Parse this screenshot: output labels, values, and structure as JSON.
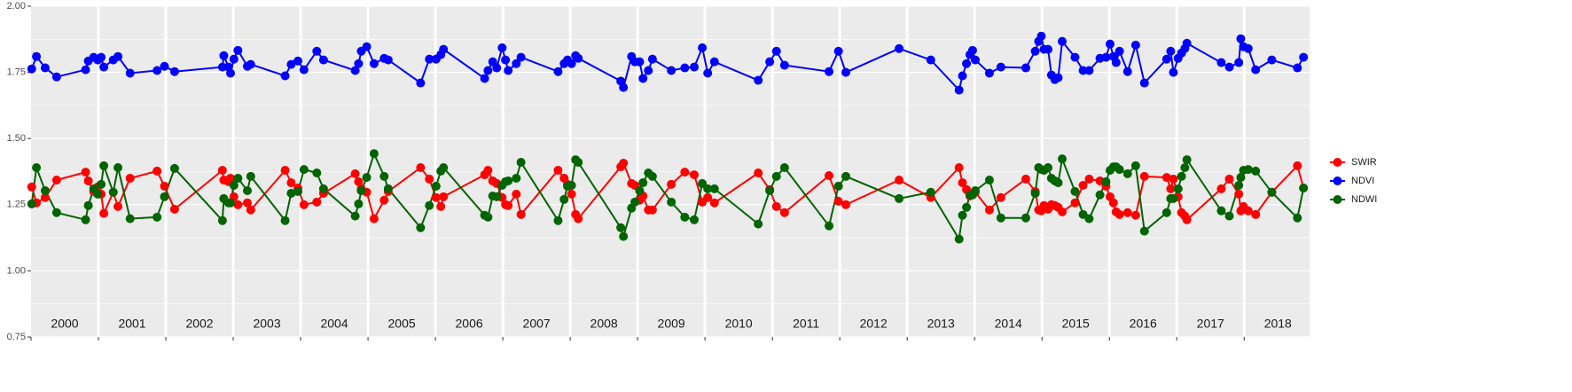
{
  "chart_data": {
    "type": "line",
    "x": [
      2000.01,
      2000.08,
      2000.21,
      2000.38,
      2000.81,
      2000.85,
      2000.93,
      2000.99,
      2001.04,
      2001.08,
      2001.22,
      2001.29,
      2001.47,
      2001.87,
      2001.98,
      2002.13,
      2002.84,
      2002.86,
      2002.93,
      2002.96,
      2003.01,
      2003.07,
      2003.21,
      2003.26,
      2003.77,
      2003.86,
      2003.96,
      2004.05,
      2004.24,
      2004.34,
      2004.81,
      2004.86,
      2004.9,
      2004.98,
      2005.09,
      2005.24,
      2005.3,
      2005.78,
      2005.91,
      2006.01,
      2006.08,
      2006.12,
      2006.73,
      2006.78,
      2006.85,
      2006.91,
      2006.99,
      2007.04,
      2007.08,
      2007.2,
      2007.27,
      2007.82,
      2007.91,
      2007.96,
      2008.02,
      2008.08,
      2008.12,
      2008.75,
      2008.79,
      2008.91,
      2008.96,
      2009.03,
      2009.08,
      2009.16,
      2009.22,
      2009.5,
      2009.7,
      2009.84,
      2009.96,
      2010.04,
      2010.14,
      2010.79,
      2010.96,
      2011.06,
      2011.18,
      2011.84,
      2011.98,
      2012.09,
      2012.88,
      2013.35,
      2013.77,
      2013.82,
      2013.88,
      2013.93,
      2013.97,
      2014.01,
      2014.22,
      2014.39,
      2014.76,
      2014.9,
      2014.95,
      2014.99,
      2015.03,
      2015.09,
      2015.14,
      2015.19,
      2015.24,
      2015.3,
      2015.49,
      2015.61,
      2015.7,
      2015.86,
      2015.95,
      2016.01,
      2016.06,
      2016.1,
      2016.15,
      2016.27,
      2016.39,
      2016.52,
      2016.85,
      2016.91,
      2016.95,
      2017.02,
      2017.07,
      2017.12,
      2017.15,
      2017.66,
      2017.78,
      2017.92,
      2017.95,
      2017.99,
      2018.06,
      2018.17,
      2018.41,
      2018.79,
      2018.88
    ],
    "series": [
      {
        "name": "SWIR",
        "color": "#ff0000",
        "values": [
          1.317,
          1.257,
          1.277,
          1.343,
          1.373,
          1.34,
          1.3,
          1.317,
          1.29,
          1.217,
          1.297,
          1.243,
          1.35,
          1.377,
          1.32,
          1.233,
          1.38,
          1.343,
          1.337,
          1.35,
          1.28,
          1.25,
          1.257,
          1.23,
          1.38,
          1.333,
          1.313,
          1.25,
          1.26,
          1.293,
          1.367,
          1.337,
          1.31,
          1.297,
          1.197,
          1.267,
          1.3,
          1.39,
          1.347,
          1.277,
          1.243,
          1.28,
          1.363,
          1.38,
          1.34,
          1.33,
          1.277,
          1.25,
          1.247,
          1.29,
          1.213,
          1.38,
          1.35,
          1.327,
          1.29,
          1.213,
          1.197,
          1.393,
          1.407,
          1.33,
          1.323,
          1.267,
          1.283,
          1.23,
          1.23,
          1.327,
          1.373,
          1.363,
          1.26,
          1.277,
          1.257,
          1.37,
          1.307,
          1.243,
          1.22,
          1.36,
          1.263,
          1.25,
          1.343,
          1.277,
          1.39,
          1.333,
          1.307,
          1.283,
          1.293,
          1.297,
          1.23,
          1.277,
          1.347,
          1.3,
          1.23,
          1.227,
          1.247,
          1.233,
          1.25,
          1.247,
          1.24,
          1.223,
          1.257,
          1.323,
          1.347,
          1.34,
          1.32,
          1.28,
          1.257,
          1.223,
          1.213,
          1.22,
          1.21,
          1.357,
          1.353,
          1.31,
          1.347,
          1.28,
          1.22,
          1.207,
          1.193,
          1.31,
          1.347,
          1.29,
          1.227,
          1.243,
          1.227,
          1.213,
          1.297,
          1.397,
          1.313
        ]
      },
      {
        "name": "NDVI",
        "color": "#0000ff",
        "values": [
          1.763,
          1.81,
          1.767,
          1.733,
          1.76,
          1.793,
          1.807,
          1.797,
          1.807,
          1.77,
          1.797,
          1.81,
          1.747,
          1.757,
          1.773,
          1.753,
          1.77,
          1.813,
          1.77,
          1.747,
          1.8,
          1.833,
          1.773,
          1.78,
          1.737,
          1.78,
          1.793,
          1.76,
          1.83,
          1.797,
          1.757,
          1.783,
          1.83,
          1.847,
          1.783,
          1.803,
          1.797,
          1.71,
          1.8,
          1.8,
          1.817,
          1.837,
          1.727,
          1.757,
          1.79,
          1.767,
          1.843,
          1.797,
          1.757,
          1.783,
          1.807,
          1.753,
          1.783,
          1.797,
          1.783,
          1.813,
          1.803,
          1.717,
          1.693,
          1.81,
          1.79,
          1.79,
          1.727,
          1.757,
          1.8,
          1.757,
          1.767,
          1.77,
          1.843,
          1.747,
          1.79,
          1.72,
          1.79,
          1.83,
          1.777,
          1.753,
          1.83,
          1.75,
          1.84,
          1.797,
          1.683,
          1.737,
          1.783,
          1.817,
          1.833,
          1.797,
          1.747,
          1.77,
          1.767,
          1.83,
          1.867,
          1.887,
          1.837,
          1.837,
          1.74,
          1.723,
          1.73,
          1.867,
          1.807,
          1.757,
          1.757,
          1.803,
          1.807,
          1.857,
          1.81,
          1.787,
          1.83,
          1.753,
          1.853,
          1.71,
          1.8,
          1.83,
          1.75,
          1.803,
          1.823,
          1.84,
          1.86,
          1.787,
          1.77,
          1.787,
          1.877,
          1.847,
          1.84,
          1.76,
          1.797,
          1.767,
          1.807
        ]
      },
      {
        "name": "NDWI",
        "color": "#006400",
        "values": [
          1.253,
          1.39,
          1.303,
          1.22,
          1.193,
          1.247,
          1.31,
          1.29,
          1.327,
          1.397,
          1.297,
          1.39,
          1.197,
          1.203,
          1.28,
          1.387,
          1.19,
          1.273,
          1.257,
          1.257,
          1.323,
          1.35,
          1.303,
          1.357,
          1.19,
          1.293,
          1.3,
          1.383,
          1.37,
          1.31,
          1.207,
          1.253,
          1.303,
          1.353,
          1.443,
          1.357,
          1.31,
          1.163,
          1.247,
          1.32,
          1.377,
          1.39,
          1.21,
          1.203,
          1.283,
          1.28,
          1.323,
          1.337,
          1.34,
          1.35,
          1.41,
          1.19,
          1.27,
          1.32,
          1.323,
          1.42,
          1.41,
          1.163,
          1.13,
          1.237,
          1.26,
          1.303,
          1.333,
          1.37,
          1.357,
          1.26,
          1.203,
          1.193,
          1.33,
          1.31,
          1.31,
          1.177,
          1.303,
          1.357,
          1.39,
          1.17,
          1.32,
          1.357,
          1.273,
          1.297,
          1.12,
          1.21,
          1.24,
          1.287,
          1.287,
          1.303,
          1.343,
          1.2,
          1.2,
          1.293,
          1.39,
          1.383,
          1.38,
          1.39,
          1.35,
          1.34,
          1.333,
          1.423,
          1.3,
          1.213,
          1.197,
          1.287,
          1.337,
          1.38,
          1.393,
          1.393,
          1.383,
          1.367,
          1.397,
          1.15,
          1.22,
          1.273,
          1.273,
          1.31,
          1.357,
          1.39,
          1.42,
          1.227,
          1.207,
          1.323,
          1.353,
          1.38,
          1.383,
          1.377,
          1.297,
          1.2,
          1.313
        ]
      }
    ],
    "xlim": [
      2000,
      2018.97
    ],
    "xticks": [
      {
        "value": 2000.5,
        "label": "2000"
      },
      {
        "value": 2001.5,
        "label": "2001"
      },
      {
        "value": 2002.5,
        "label": "2002"
      },
      {
        "value": 2003.5,
        "label": "2003"
      },
      {
        "value": 2004.5,
        "label": "2004"
      },
      {
        "value": 2005.5,
        "label": "2005"
      },
      {
        "value": 2006.5,
        "label": "2006"
      },
      {
        "value": 2007.5,
        "label": "2007"
      },
      {
        "value": 2008.5,
        "label": "2008"
      },
      {
        "value": 2009.5,
        "label": "2009"
      },
      {
        "value": 2010.5,
        "label": "2010"
      },
      {
        "value": 2011.5,
        "label": "2011"
      },
      {
        "value": 2012.5,
        "label": "2012"
      },
      {
        "value": 2013.5,
        "label": "2013"
      },
      {
        "value": 2014.5,
        "label": "2014"
      },
      {
        "value": 2015.5,
        "label": "2015"
      },
      {
        "value": 2016.5,
        "label": "2016"
      },
      {
        "value": 2017.5,
        "label": "2017"
      },
      {
        "value": 2018.5,
        "label": "2018"
      }
    ],
    "ylim": [
      0.75,
      2.0
    ],
    "yticks": [
      {
        "value": 0.75,
        "label": "0.75"
      },
      {
        "value": 1.0,
        "label": "1.00"
      },
      {
        "value": 1.25,
        "label": "1.25"
      },
      {
        "value": 1.5,
        "label": "1.50"
      },
      {
        "value": 1.75,
        "label": "1.75"
      },
      {
        "value": 2.0,
        "label": "2.00"
      }
    ],
    "grid": true,
    "legend": "right"
  }
}
